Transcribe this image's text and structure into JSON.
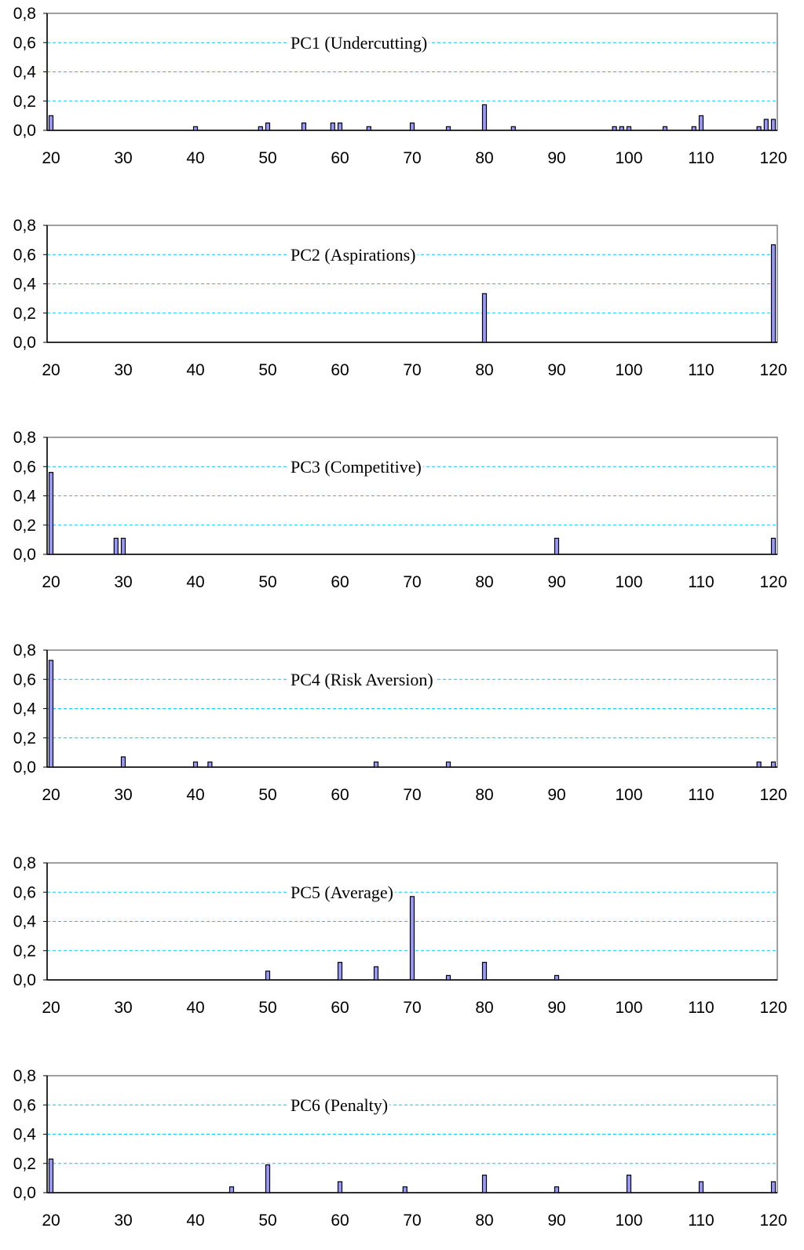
{
  "chart_data": [
    {
      "type": "bar",
      "title": "PC1 (Undercutting)",
      "xlabel": "",
      "ylabel": "",
      "xlim": [
        20,
        120
      ],
      "ylim": [
        0,
        0.8
      ],
      "x_ticks": [
        "20",
        "30",
        "40",
        "50",
        "60",
        "70",
        "80",
        "90",
        "100",
        "110",
        "120"
      ],
      "y_ticks": [
        "0,0",
        "0,2",
        "0,4",
        "0,6",
        "0,8"
      ],
      "grid": "horizontal-dashed",
      "x": [
        20,
        40,
        49,
        50,
        55,
        59,
        60,
        64,
        70,
        75,
        80,
        84,
        98,
        99,
        100,
        105,
        109,
        110,
        118,
        119,
        120
      ],
      "values": [
        0.1,
        0.025,
        0.025,
        0.05,
        0.05,
        0.05,
        0.05,
        0.025,
        0.05,
        0.025,
        0.175,
        0.025,
        0.025,
        0.025,
        0.025,
        0.025,
        0.025,
        0.1,
        0.025,
        0.075,
        0.075
      ]
    },
    {
      "type": "bar",
      "title": "PC2 (Aspirations)",
      "xlabel": "",
      "ylabel": "",
      "xlim": [
        20,
        120
      ],
      "ylim": [
        0,
        0.8
      ],
      "x_ticks": [
        "20",
        "30",
        "40",
        "50",
        "60",
        "70",
        "80",
        "90",
        "100",
        "110",
        "120"
      ],
      "y_ticks": [
        "0,0",
        "0,2",
        "0,4",
        "0,6",
        "0,8"
      ],
      "grid": "horizontal-dashed",
      "x": [
        80,
        120
      ],
      "values": [
        0.333,
        0.667
      ]
    },
    {
      "type": "bar",
      "title": "PC3 (Competitive)",
      "xlabel": "",
      "ylabel": "",
      "xlim": [
        20,
        120
      ],
      "ylim": [
        0,
        0.8
      ],
      "x_ticks": [
        "20",
        "30",
        "40",
        "50",
        "60",
        "70",
        "80",
        "90",
        "100",
        "110",
        "120"
      ],
      "y_ticks": [
        "0,0",
        "0,2",
        "0,4",
        "0,6",
        "0,8"
      ],
      "grid": "horizontal-dashed",
      "x": [
        20,
        29,
        30,
        90,
        120
      ],
      "values": [
        0.56,
        0.11,
        0.11,
        0.11,
        0.11
      ]
    },
    {
      "type": "bar",
      "title": "PC4 (Risk Aversion)",
      "xlabel": "",
      "ylabel": "",
      "xlim": [
        20,
        120
      ],
      "ylim": [
        0,
        0.8
      ],
      "x_ticks": [
        "20",
        "30",
        "40",
        "50",
        "60",
        "70",
        "80",
        "90",
        "100",
        "110",
        "120"
      ],
      "y_ticks": [
        "0,0",
        "0,2",
        "0,4",
        "0,6",
        "0,8"
      ],
      "grid": "horizontal-dashed",
      "x": [
        20,
        30,
        40,
        42,
        65,
        75,
        118,
        120
      ],
      "values": [
        0.73,
        0.07,
        0.035,
        0.035,
        0.035,
        0.035,
        0.035,
        0.035
      ]
    },
    {
      "type": "bar",
      "title": "PC5 (Average)",
      "xlabel": "",
      "ylabel": "",
      "xlim": [
        20,
        120
      ],
      "ylim": [
        0,
        0.8
      ],
      "x_ticks": [
        "20",
        "30",
        "40",
        "50",
        "60",
        "70",
        "80",
        "90",
        "100",
        "110",
        "120"
      ],
      "y_ticks": [
        "0,0",
        "0,2",
        "0,4",
        "0,6",
        "0,8"
      ],
      "grid": "horizontal-dashed",
      "x": [
        50,
        60,
        65,
        70,
        75,
        80,
        90
      ],
      "values": [
        0.06,
        0.12,
        0.09,
        0.57,
        0.03,
        0.12,
        0.03
      ]
    },
    {
      "type": "bar",
      "title": "PC6 (Penalty)",
      "xlabel": "",
      "ylabel": "",
      "xlim": [
        20,
        120
      ],
      "ylim": [
        0,
        0.8
      ],
      "x_ticks": [
        "20",
        "30",
        "40",
        "50",
        "60",
        "70",
        "80",
        "90",
        "100",
        "110",
        "120"
      ],
      "y_ticks": [
        "0,0",
        "0,2",
        "0,4",
        "0,6",
        "0,8"
      ],
      "grid": "horizontal-dashed",
      "x": [
        20,
        45,
        50,
        60,
        69,
        80,
        90,
        100,
        110,
        120
      ],
      "values": [
        0.23,
        0.04,
        0.19,
        0.075,
        0.04,
        0.12,
        0.04,
        0.12,
        0.075,
        0.075
      ]
    }
  ],
  "colors": {
    "bar_fill": "#9999ff",
    "bar_stroke": "#000000",
    "grid": "#00ccff",
    "axis": "#000000"
  }
}
